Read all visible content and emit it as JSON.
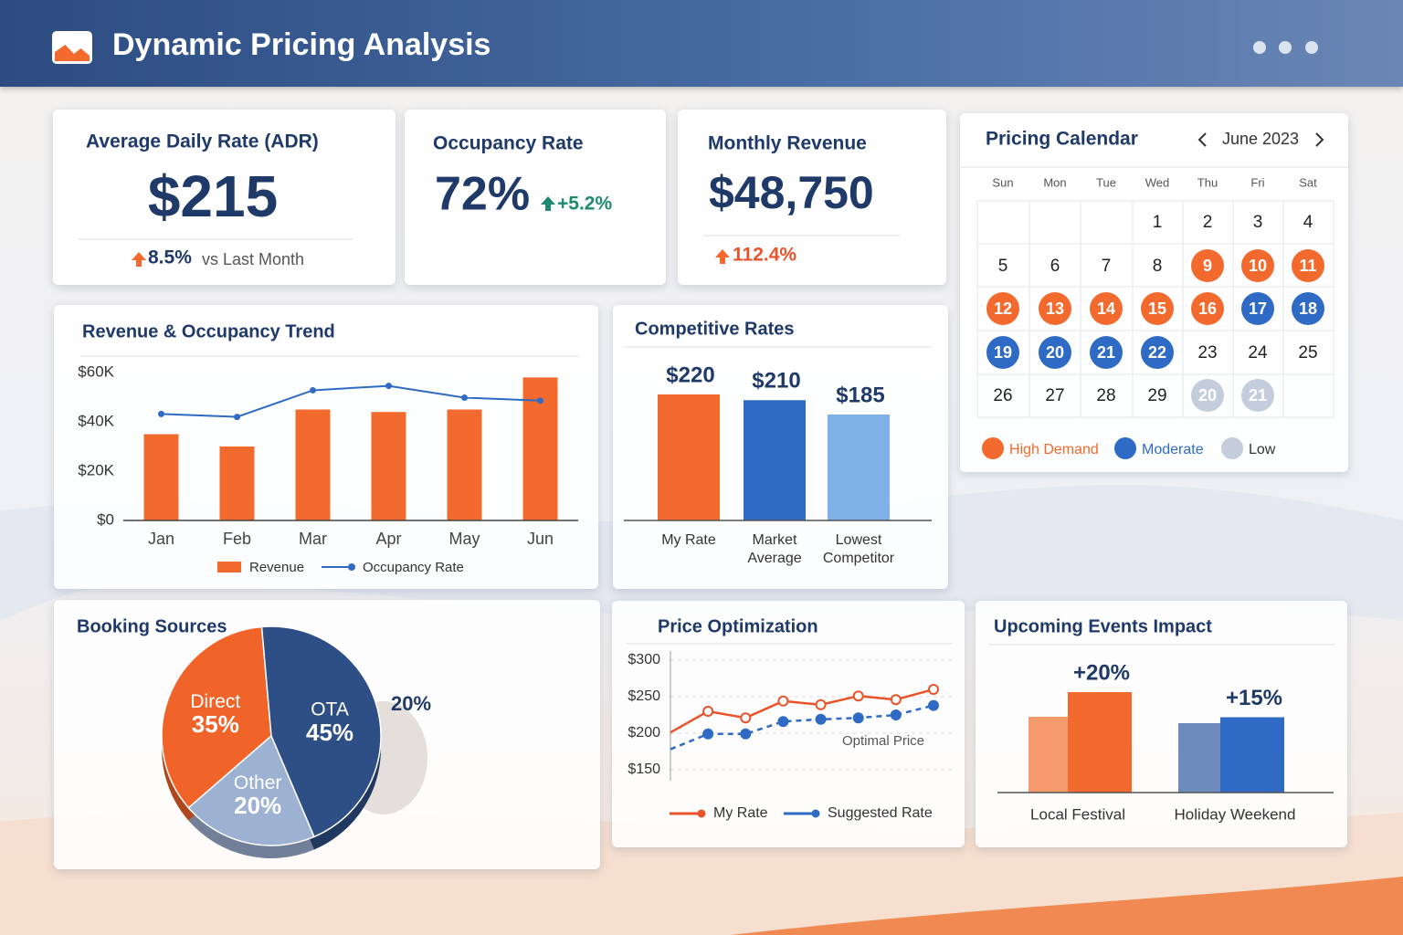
{
  "header": {
    "title": "Dynamic Pricing Analysis"
  },
  "kpis": [
    {
      "title": "Average Daily Rate (ADR)",
      "value": "$215",
      "change": "8.5%",
      "note": "vs Last Month"
    },
    {
      "title": "Occupancy Rate",
      "value": "72%",
      "change": "+5.2%"
    },
    {
      "title": "Monthly Revenue",
      "value": "$48,750",
      "change": "112.4%"
    }
  ],
  "calendar": {
    "title": "Pricing Calendar",
    "month": "June 2023",
    "weekdays": [
      "Sun",
      "Mon",
      "Tue",
      "Wed",
      "Thu",
      "Fri",
      "Sat"
    ],
    "weeks": [
      [
        null,
        null,
        null,
        {
          "day": 1
        },
        {
          "day": 2
        },
        {
          "day": 3
        },
        {
          "day": 4
        }
      ],
      [
        {
          "day": 5
        },
        {
          "day": 6
        },
        {
          "day": 7
        },
        {
          "day": 8
        },
        {
          "day": 9,
          "level": 0
        },
        {
          "day": 10,
          "level": 0
        },
        {
          "day": 11,
          "level": 0
        }
      ],
      [
        {
          "day": 12,
          "level": 0
        },
        {
          "day": 13,
          "level": 0
        },
        {
          "day": 14,
          "level": 0
        },
        {
          "day": 15,
          "level": 0
        },
        {
          "day": 16,
          "level": 0
        },
        {
          "day": 17,
          "level": 1
        },
        {
          "day": 18,
          "level": 1
        }
      ],
      [
        {
          "day": 19,
          "level": 1
        },
        {
          "day": 20,
          "level": 1
        },
        {
          "day": 21,
          "level": 1
        },
        {
          "day": 22,
          "level": 1
        },
        {
          "day": 23
        },
        {
          "day": 24
        },
        {
          "day": 25
        }
      ],
      [
        {
          "day": 26
        },
        {
          "day": 27
        },
        {
          "day": 28
        },
        {
          "day": 29
        },
        {
          "day": 20,
          "level": 2
        },
        {
          "day": 21,
          "level": 2
        },
        null
      ]
    ],
    "legend": [
      {
        "name": "High Demand",
        "color": "#f26a2e"
      },
      {
        "name": "Moderate",
        "color": "#2f6bc4"
      },
      {
        "name": "Low",
        "color": "#c3cddc"
      }
    ]
  },
  "chart_data": [
    {
      "type": "combo",
      "title": "Revenue & Occupancy Trend",
      "categories": [
        "Jan",
        "Feb",
        "Mar",
        "Apr",
        "May",
        "Jun"
      ],
      "ylim": [
        0,
        60000
      ],
      "yticks": [
        {
          "value": 0,
          "label": "$0"
        },
        {
          "value": 20000,
          "label": "$20K"
        },
        {
          "value": 40000,
          "label": "$40K"
        },
        {
          "value": 60000,
          "label": "$60K"
        }
      ],
      "y2lim": [
        0,
        100
      ],
      "series": [
        {
          "name": "Revenue",
          "color": "#f26a2e",
          "values": [
            35000,
            30000,
            45000,
            44000,
            45000,
            58000
          ]
        },
        {
          "name": "Occupancy Rate",
          "color": "#2f6bc4",
          "axis": "y2",
          "values": [
            72,
            70,
            88,
            91,
            83,
            81
          ]
        }
      ]
    },
    {
      "type": "bar",
      "title": "Competitive Rates",
      "categories": [
        "My Rate",
        "Market Average",
        "Lowest Competitor"
      ],
      "values": [
        220,
        210,
        185
      ],
      "value_labels": [
        "$220",
        "$210",
        "$185"
      ],
      "colors": [
        "#f26a2e",
        "#2f6bc4",
        "#7fb0e6"
      ]
    },
    {
      "type": "pie",
      "title": "Booking Sources",
      "categories": [
        "Direct",
        "OTA",
        "Other"
      ],
      "values": [
        35,
        45,
        20
      ],
      "value_labels": [
        "35%",
        "45%",
        "20%"
      ],
      "colors": [
        "#f0642a",
        "#2e4f86",
        "#9db1d3"
      ],
      "annotation": "20%"
    },
    {
      "type": "line",
      "title": "Price Optimization",
      "categories": [
        null,
        null,
        null,
        null,
        null,
        null,
        null,
        null
      ],
      "ylim": [
        150,
        300
      ],
      "yticks": [
        {
          "value": 150,
          "label": "$150"
        },
        {
          "value": 200,
          "label": "$200"
        },
        {
          "value": 250,
          "label": "$250"
        },
        {
          "value": 300,
          "label": "$300"
        }
      ],
      "series": [
        {
          "name": "My Rate",
          "color": "#e8542a",
          "values": [
            201,
            230,
            221,
            244,
            239,
            251,
            246,
            260
          ]
        },
        {
          "name": "Suggested Rate",
          "color": "#2f6bc4",
          "dashed": true,
          "values": [
            178,
            199,
            199,
            216,
            219,
            221,
            225,
            238
          ]
        }
      ],
      "annotation": "Optimal Price"
    },
    {
      "type": "bar",
      "title": "Upcoming Events Impact",
      "categories": [
        "Local Festival",
        "Holiday Weekend"
      ],
      "values": [
        20,
        15
      ],
      "value_labels": [
        "+20%",
        "+15%"
      ],
      "colors": [
        "#f26a2e",
        "#2f6bc4"
      ]
    }
  ]
}
